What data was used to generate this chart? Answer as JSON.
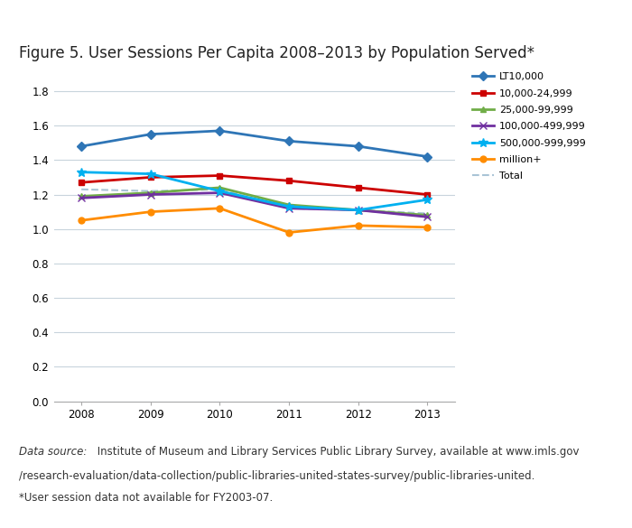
{
  "years": [
    2008,
    2009,
    2010,
    2011,
    2012,
    2013
  ],
  "series_order": [
    "LT10,000",
    "10,000-24,999",
    "25,000-99,999",
    "100,000-499,999",
    "500,000-999,999",
    "million+",
    "Total"
  ],
  "series": {
    "LT10,000": {
      "values": [
        1.48,
        1.55,
        1.57,
        1.51,
        1.48,
        1.42
      ],
      "color": "#2E75B6",
      "marker": "D",
      "linewidth": 2.0,
      "markersize": 5,
      "linestyle": "-"
    },
    "10,000-24,999": {
      "values": [
        1.27,
        1.3,
        1.31,
        1.28,
        1.24,
        1.2
      ],
      "color": "#CC0000",
      "marker": "s",
      "linewidth": 2.0,
      "markersize": 5,
      "linestyle": "-"
    },
    "25,000-99,999": {
      "values": [
        1.19,
        1.21,
        1.24,
        1.14,
        1.11,
        1.08
      ],
      "color": "#70AD47",
      "marker": "^",
      "linewidth": 2.0,
      "markersize": 5,
      "linestyle": "-"
    },
    "100,000-499,999": {
      "values": [
        1.18,
        1.2,
        1.21,
        1.12,
        1.11,
        1.07
      ],
      "color": "#7030A0",
      "marker": "x",
      "linewidth": 2.0,
      "markersize": 6,
      "linestyle": "-"
    },
    "500,000-999,999": {
      "values": [
        1.33,
        1.32,
        1.22,
        1.13,
        1.11,
        1.17
      ],
      "color": "#00B0F0",
      "marker": "*",
      "linewidth": 2.0,
      "markersize": 7,
      "linestyle": "-"
    },
    "million+": {
      "values": [
        1.05,
        1.1,
        1.12,
        0.98,
        1.02,
        1.01
      ],
      "color": "#FF8C00",
      "marker": "o",
      "linewidth": 2.0,
      "markersize": 5,
      "linestyle": "-"
    },
    "Total": {
      "values": [
        1.23,
        1.22,
        1.23,
        1.12,
        1.11,
        1.09
      ],
      "color": "#A9C4D6",
      "marker": "",
      "linewidth": 1.5,
      "markersize": 4,
      "linestyle": "--"
    }
  },
  "title_bold": "Figure 5.",
  "title_rest": " User Sessions Per Capita 2008–2013 by Population Served",
  "title_super": "*",
  "ylim": [
    0.0,
    1.9
  ],
  "yticks": [
    0.0,
    0.2,
    0.4,
    0.6,
    0.8,
    1.0,
    1.2,
    1.4,
    1.6,
    1.8
  ],
  "xlim_left": 2007.6,
  "xlim_right": 2013.4,
  "background_color": "#FFFFFF",
  "grid_color": "#C8D4DC",
  "top_bar_color": "#8DC63F",
  "top_bar_height": 0.018,
  "footer_italic": "Data source:",
  "footer_normal1": " Institute of Museum and Library Services Public Library Survey, available at www.imls.gov",
  "footer_line2": "/research-evaluation/data-collection/public-libraries-united-states-survey/public-libraries-united.",
  "footer_line3": "*User session data not available for FY2003-07.",
  "footer_fontsize": 8.5,
  "title_fontsize": 12,
  "tick_fontsize": 8.5,
  "legend_fontsize": 8.0
}
